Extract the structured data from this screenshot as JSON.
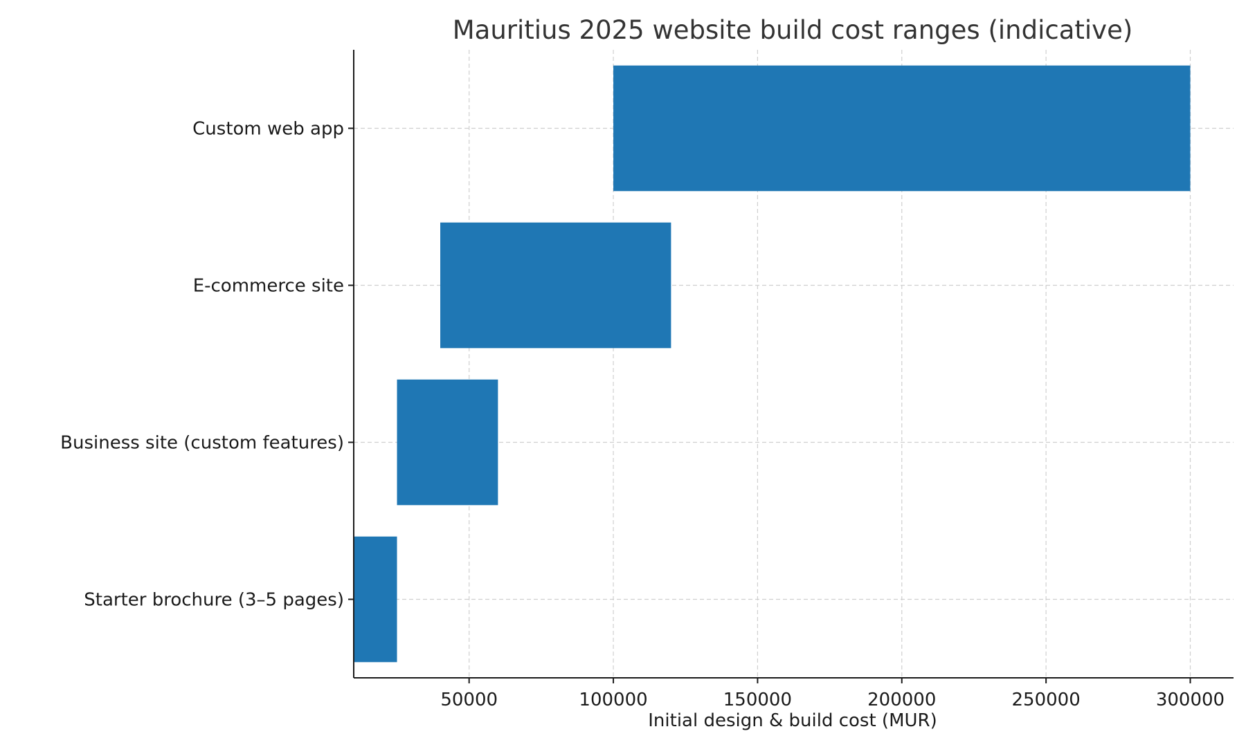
{
  "chart_data": {
    "type": "bar",
    "orientation": "horizontal",
    "title": "Mauritius 2025 website build cost ranges (indicative)",
    "xlabel": "Initial design & build cost (MUR)",
    "ylabel": "",
    "categories": [
      "Starter brochure (3–5 pages)",
      "Business site (custom features)",
      "E-commerce site",
      "Custom web app"
    ],
    "ranges": [
      {
        "low": 10000,
        "high": 25000
      },
      {
        "low": 25000,
        "high": 60000
      },
      {
        "low": 40000,
        "high": 120000
      },
      {
        "low": 100000,
        "high": 300000
      }
    ],
    "xlim": [
      10000,
      315000
    ],
    "xticks": [
      50000,
      100000,
      150000,
      200000,
      250000,
      300000
    ],
    "grid": true,
    "bar_color": "#1f77b4"
  }
}
